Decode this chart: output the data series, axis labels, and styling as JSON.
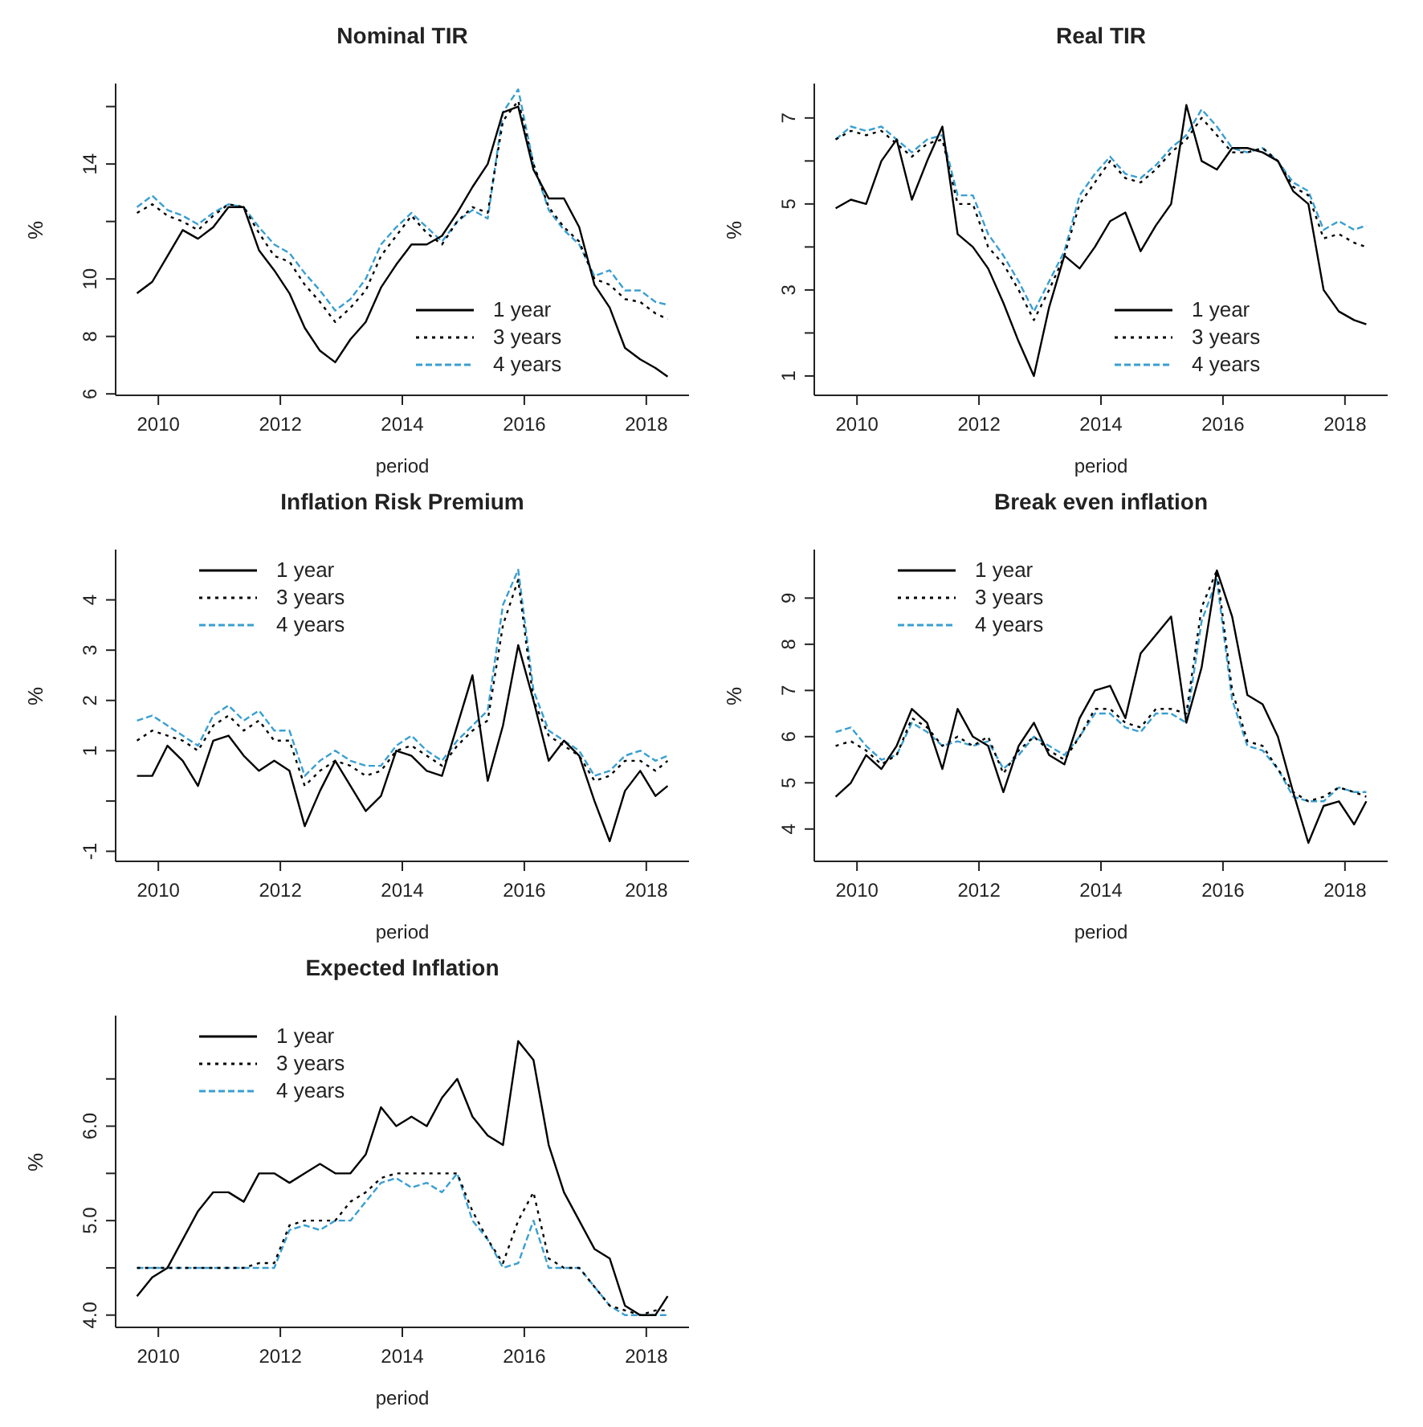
{
  "chart_data": [
    {
      "type": "line",
      "title": "Nominal TIR",
      "xlabel": "period",
      "ylabel": "%",
      "legend": "bottom right",
      "xlim": [
        2009.3,
        2018.7
      ],
      "xticks": [
        2010,
        2012,
        2014,
        2016,
        2018
      ],
      "ylim": [
        5.95,
        16.8
      ],
      "yticks": [
        6,
        8,
        10,
        {
          "value": 12,
          "label": null
        },
        14,
        {
          "value": 16,
          "label": null
        }
      ],
      "x": [
        2009.65,
        2009.9,
        2010.15,
        2010.4,
        2010.65,
        2010.9,
        2011.15,
        2011.4,
        2011.65,
        2011.9,
        2012.15,
        2012.4,
        2012.65,
        2012.9,
        2013.15,
        2013.4,
        2013.65,
        2013.9,
        2014.15,
        2014.4,
        2014.65,
        2014.9,
        2015.15,
        2015.4,
        2015.65,
        2015.9,
        2016.15,
        2016.4,
        2016.65,
        2016.9,
        2017.15,
        2017.4,
        2017.65,
        2017.9,
        2018.15,
        2018.35
      ],
      "series": [
        {
          "name": "1 year",
          "color": "#000000",
          "line_style": "solid",
          "values": [
            9.5,
            9.9,
            10.8,
            11.7,
            11.4,
            11.8,
            12.5,
            12.5,
            11.0,
            10.3,
            9.5,
            8.3,
            7.5,
            7.1,
            7.9,
            8.5,
            9.7,
            10.5,
            11.2,
            11.2,
            11.5,
            12.3,
            13.2,
            14.0,
            15.8,
            16.0,
            13.8,
            12.8,
            12.8,
            11.8,
            9.8,
            9.0,
            7.6,
            7.2,
            6.9,
            6.6
          ]
        },
        {
          "name": "3 years",
          "color": "#000000",
          "line_style": "dotted",
          "values": [
            12.3,
            12.6,
            12.2,
            12.0,
            11.7,
            12.2,
            12.6,
            12.5,
            11.6,
            10.8,
            10.6,
            9.8,
            9.2,
            8.5,
            9.0,
            9.6,
            10.8,
            11.5,
            12.2,
            11.6,
            11.2,
            12.0,
            12.5,
            12.3,
            15.5,
            16.2,
            14.0,
            12.5,
            11.8,
            11.3,
            10.0,
            9.8,
            9.3,
            9.2,
            8.8,
            8.6
          ]
        },
        {
          "name": "4 years",
          "color": "#3a9fd0",
          "line_style": "dashed",
          "values": [
            12.5,
            12.9,
            12.4,
            12.2,
            11.9,
            12.3,
            12.6,
            12.5,
            11.8,
            11.2,
            10.9,
            10.2,
            9.6,
            8.9,
            9.3,
            10.0,
            11.2,
            11.8,
            12.3,
            11.8,
            11.3,
            12.0,
            12.4,
            12.1,
            15.8,
            16.6,
            14.0,
            12.4,
            11.7,
            11.2,
            10.1,
            10.3,
            9.6,
            9.6,
            9.2,
            9.1
          ]
        }
      ]
    },
    {
      "type": "line",
      "title": "Real TIR",
      "xlabel": "period",
      "ylabel": "%",
      "legend": "bottom right",
      "xlim": [
        2009.3,
        2018.7
      ],
      "xticks": [
        2010,
        2012,
        2014,
        2016,
        2018
      ],
      "ylim": [
        0.55,
        7.8
      ],
      "yticks": [
        1,
        {
          "value": 2,
          "label": null
        },
        3,
        {
          "value": 4,
          "label": null
        },
        5,
        {
          "value": 6,
          "label": null
        },
        7
      ],
      "x": [
        2009.65,
        2009.9,
        2010.15,
        2010.4,
        2010.65,
        2010.9,
        2011.15,
        2011.4,
        2011.65,
        2011.9,
        2012.15,
        2012.4,
        2012.65,
        2012.9,
        2013.15,
        2013.4,
        2013.65,
        2013.9,
        2014.15,
        2014.4,
        2014.65,
        2014.9,
        2015.15,
        2015.4,
        2015.65,
        2015.9,
        2016.15,
        2016.4,
        2016.65,
        2016.9,
        2017.15,
        2017.4,
        2017.65,
        2017.9,
        2018.15,
        2018.35
      ],
      "series": [
        {
          "name": "1 year",
          "color": "#000000",
          "line_style": "solid",
          "values": [
            4.9,
            5.1,
            5.0,
            6.0,
            6.5,
            5.1,
            6.0,
            6.8,
            4.3,
            4.0,
            3.5,
            2.7,
            1.8,
            1.0,
            2.6,
            3.8,
            3.5,
            4.0,
            4.6,
            4.8,
            3.9,
            4.5,
            5.0,
            7.3,
            6.0,
            5.8,
            6.3,
            6.3,
            6.2,
            6.0,
            5.3,
            5.0,
            3.0,
            2.5,
            2.3,
            2.2
          ]
        },
        {
          "name": "3 years",
          "color": "#000000",
          "line_style": "dotted",
          "values": [
            6.5,
            6.7,
            6.6,
            6.7,
            6.4,
            6.1,
            6.4,
            6.5,
            5.0,
            5.0,
            4.0,
            3.6,
            3.0,
            2.3,
            3.0,
            3.8,
            5.0,
            5.5,
            6.0,
            5.6,
            5.5,
            5.8,
            6.2,
            6.5,
            7.0,
            6.6,
            6.2,
            6.2,
            6.3,
            6.0,
            5.4,
            5.2,
            4.2,
            4.3,
            4.1,
            4.0
          ]
        },
        {
          "name": "4 years",
          "color": "#3a9fd0",
          "line_style": "dashed",
          "values": [
            6.5,
            6.8,
            6.7,
            6.8,
            6.5,
            6.2,
            6.5,
            6.6,
            5.2,
            5.2,
            4.3,
            3.8,
            3.2,
            2.5,
            3.2,
            3.9,
            5.2,
            5.7,
            6.1,
            5.7,
            5.6,
            5.9,
            6.3,
            6.6,
            7.2,
            6.8,
            6.3,
            6.2,
            6.3,
            6.0,
            5.5,
            5.3,
            4.4,
            4.6,
            4.4,
            4.5
          ]
        }
      ]
    },
    {
      "type": "line",
      "title": "Inflation Risk Premium",
      "xlabel": "period",
      "ylabel": "%",
      "legend": "top left",
      "xlim": [
        2009.3,
        2018.7
      ],
      "xticks": [
        2010,
        2012,
        2014,
        2016,
        2018
      ],
      "ylim": [
        -1.2,
        5.0
      ],
      "yticks": [
        -1,
        {
          "value": 0,
          "label": null
        },
        1,
        2,
        3,
        4
      ],
      "x": [
        2009.65,
        2009.9,
        2010.15,
        2010.4,
        2010.65,
        2010.9,
        2011.15,
        2011.4,
        2011.65,
        2011.9,
        2012.15,
        2012.4,
        2012.65,
        2012.9,
        2013.15,
        2013.4,
        2013.65,
        2013.9,
        2014.15,
        2014.4,
        2014.65,
        2014.9,
        2015.15,
        2015.4,
        2015.65,
        2015.9,
        2016.15,
        2016.4,
        2016.65,
        2016.9,
        2017.15,
        2017.4,
        2017.65,
        2017.9,
        2018.15,
        2018.35
      ],
      "series": [
        {
          "name": "1 year",
          "color": "#000000",
          "line_style": "solid",
          "values": [
            0.5,
            0.5,
            1.1,
            0.8,
            0.3,
            1.2,
            1.3,
            0.9,
            0.6,
            0.8,
            0.6,
            -0.5,
            0.2,
            0.8,
            0.3,
            -0.2,
            0.1,
            1.0,
            0.9,
            0.6,
            0.5,
            1.5,
            2.5,
            0.4,
            1.5,
            3.1,
            2.0,
            0.8,
            1.2,
            0.9,
            0.0,
            -0.8,
            0.2,
            0.6,
            0.1,
            0.3
          ]
        },
        {
          "name": "3 years",
          "color": "#000000",
          "line_style": "dotted",
          "values": [
            1.2,
            1.4,
            1.3,
            1.2,
            1.0,
            1.5,
            1.7,
            1.4,
            1.6,
            1.2,
            1.2,
            0.3,
            0.6,
            0.8,
            0.7,
            0.5,
            0.6,
            1.0,
            1.1,
            0.9,
            0.7,
            1.1,
            1.4,
            1.6,
            3.5,
            4.4,
            2.0,
            1.3,
            1.1,
            0.9,
            0.4,
            0.5,
            0.8,
            0.8,
            0.6,
            0.8
          ]
        },
        {
          "name": "4 years",
          "color": "#3a9fd0",
          "line_style": "dashed",
          "values": [
            1.6,
            1.7,
            1.5,
            1.3,
            1.1,
            1.7,
            1.9,
            1.6,
            1.8,
            1.4,
            1.4,
            0.5,
            0.8,
            1.0,
            0.8,
            0.7,
            0.7,
            1.1,
            1.3,
            1.0,
            0.8,
            1.2,
            1.5,
            1.8,
            3.9,
            4.6,
            2.2,
            1.4,
            1.2,
            1.0,
            0.5,
            0.6,
            0.9,
            1.0,
            0.8,
            0.9
          ]
        }
      ]
    },
    {
      "type": "line",
      "title": "Break even inflation",
      "xlabel": "period",
      "ylabel": "%",
      "legend": "top left",
      "xlim": [
        2009.3,
        2018.7
      ],
      "xticks": [
        2010,
        2012,
        2014,
        2016,
        2018
      ],
      "ylim": [
        3.3,
        10.05
      ],
      "yticks": [
        4,
        5,
        6,
        7,
        8,
        9
      ],
      "x": [
        2009.65,
        2009.9,
        2010.15,
        2010.4,
        2010.65,
        2010.9,
        2011.15,
        2011.4,
        2011.65,
        2011.9,
        2012.15,
        2012.4,
        2012.65,
        2012.9,
        2013.15,
        2013.4,
        2013.65,
        2013.9,
        2014.15,
        2014.4,
        2014.65,
        2014.9,
        2015.15,
        2015.4,
        2015.65,
        2015.9,
        2016.15,
        2016.4,
        2016.65,
        2016.9,
        2017.15,
        2017.4,
        2017.65,
        2017.9,
        2018.15,
        2018.35
      ],
      "series": [
        {
          "name": "1 year",
          "color": "#000000",
          "line_style": "solid",
          "values": [
            4.7,
            5.0,
            5.6,
            5.3,
            5.8,
            6.6,
            6.3,
            5.3,
            6.6,
            6.0,
            5.8,
            4.8,
            5.8,
            6.3,
            5.6,
            5.4,
            6.4,
            7.0,
            7.1,
            6.4,
            7.8,
            8.2,
            8.6,
            6.3,
            7.5,
            9.6,
            8.6,
            6.9,
            6.7,
            6.0,
            4.8,
            3.7,
            4.5,
            4.6,
            4.1,
            4.6
          ]
        },
        {
          "name": "3 years",
          "color": "#000000",
          "line_style": "dotted",
          "values": [
            5.8,
            5.9,
            5.7,
            5.4,
            5.6,
            6.4,
            6.2,
            5.8,
            6.0,
            5.8,
            6.0,
            5.2,
            5.7,
            6.0,
            5.7,
            5.5,
            6.0,
            6.6,
            6.6,
            6.3,
            6.2,
            6.6,
            6.6,
            6.5,
            8.8,
            9.6,
            7.0,
            5.9,
            5.8,
            5.3,
            4.8,
            4.6,
            4.7,
            4.9,
            4.8,
            4.7
          ]
        },
        {
          "name": "4 years",
          "color": "#3a9fd0",
          "line_style": "dashed",
          "values": [
            6.1,
            6.2,
            5.8,
            5.5,
            5.6,
            6.3,
            6.1,
            5.8,
            5.9,
            5.8,
            5.9,
            5.3,
            5.6,
            6.0,
            5.8,
            5.6,
            6.0,
            6.5,
            6.5,
            6.2,
            6.1,
            6.5,
            6.5,
            6.3,
            8.5,
            9.4,
            6.8,
            5.8,
            5.7,
            5.3,
            4.7,
            4.6,
            4.6,
            4.9,
            4.8,
            4.8
          ]
        }
      ]
    },
    {
      "type": "line",
      "title": "Expected Inflation",
      "xlabel": "period",
      "ylabel": "%",
      "legend": "top left",
      "xlim": [
        2009.3,
        2018.7
      ],
      "xticks": [
        2010,
        2012,
        2014,
        2016,
        2018
      ],
      "ylim": [
        3.87,
        7.17
      ],
      "yticks": [
        {
          "value": 4,
          "label": "4.0"
        },
        {
          "value": 4.5,
          "label": null
        },
        {
          "value": 5,
          "label": "5.0"
        },
        {
          "value": 5.5,
          "label": null
        },
        {
          "value": 6,
          "label": "6.0"
        },
        {
          "value": 6.5,
          "label": null
        }
      ],
      "x": [
        2009.65,
        2009.9,
        2010.15,
        2010.4,
        2010.65,
        2010.9,
        2011.15,
        2011.4,
        2011.65,
        2011.9,
        2012.15,
        2012.4,
        2012.65,
        2012.9,
        2013.15,
        2013.4,
        2013.65,
        2013.9,
        2014.15,
        2014.4,
        2014.65,
        2014.9,
        2015.15,
        2015.4,
        2015.65,
        2015.9,
        2016.15,
        2016.4,
        2016.65,
        2016.9,
        2017.15,
        2017.4,
        2017.65,
        2017.9,
        2018.15,
        2018.35
      ],
      "series": [
        {
          "name": "1 year",
          "color": "#000000",
          "line_style": "solid",
          "values": [
            4.2,
            4.4,
            4.5,
            4.8,
            5.1,
            5.3,
            5.3,
            5.2,
            5.5,
            5.5,
            5.4,
            5.5,
            5.6,
            5.5,
            5.5,
            5.7,
            6.2,
            6.0,
            6.1,
            6.0,
            6.3,
            6.5,
            6.1,
            5.9,
            5.8,
            6.9,
            6.7,
            5.8,
            5.3,
            5.0,
            4.7,
            4.6,
            4.1,
            4.0,
            4.0,
            4.2
          ]
        },
        {
          "name": "3 years",
          "color": "#000000",
          "line_style": "dotted",
          "values": [
            4.5,
            4.5,
            4.5,
            4.5,
            4.5,
            4.5,
            4.5,
            4.5,
            4.55,
            4.55,
            4.95,
            5.0,
            5.0,
            5.0,
            5.2,
            5.3,
            5.45,
            5.5,
            5.5,
            5.5,
            5.5,
            5.5,
            5.1,
            4.8,
            4.55,
            5.0,
            5.3,
            4.6,
            4.5,
            4.5,
            4.3,
            4.1,
            4.05,
            4.0,
            4.05,
            4.05
          ]
        },
        {
          "name": "4 years",
          "color": "#3a9fd0",
          "line_style": "dashed",
          "values": [
            4.5,
            4.5,
            4.5,
            4.5,
            4.5,
            4.5,
            4.5,
            4.5,
            4.5,
            4.5,
            4.9,
            4.95,
            4.9,
            5.0,
            5.0,
            5.2,
            5.4,
            5.45,
            5.35,
            5.4,
            5.3,
            5.5,
            5.0,
            4.8,
            4.5,
            4.55,
            5.0,
            4.5,
            4.5,
            4.5,
            4.3,
            4.1,
            4.0,
            4.0,
            4.0,
            4.0
          ]
        }
      ]
    }
  ]
}
